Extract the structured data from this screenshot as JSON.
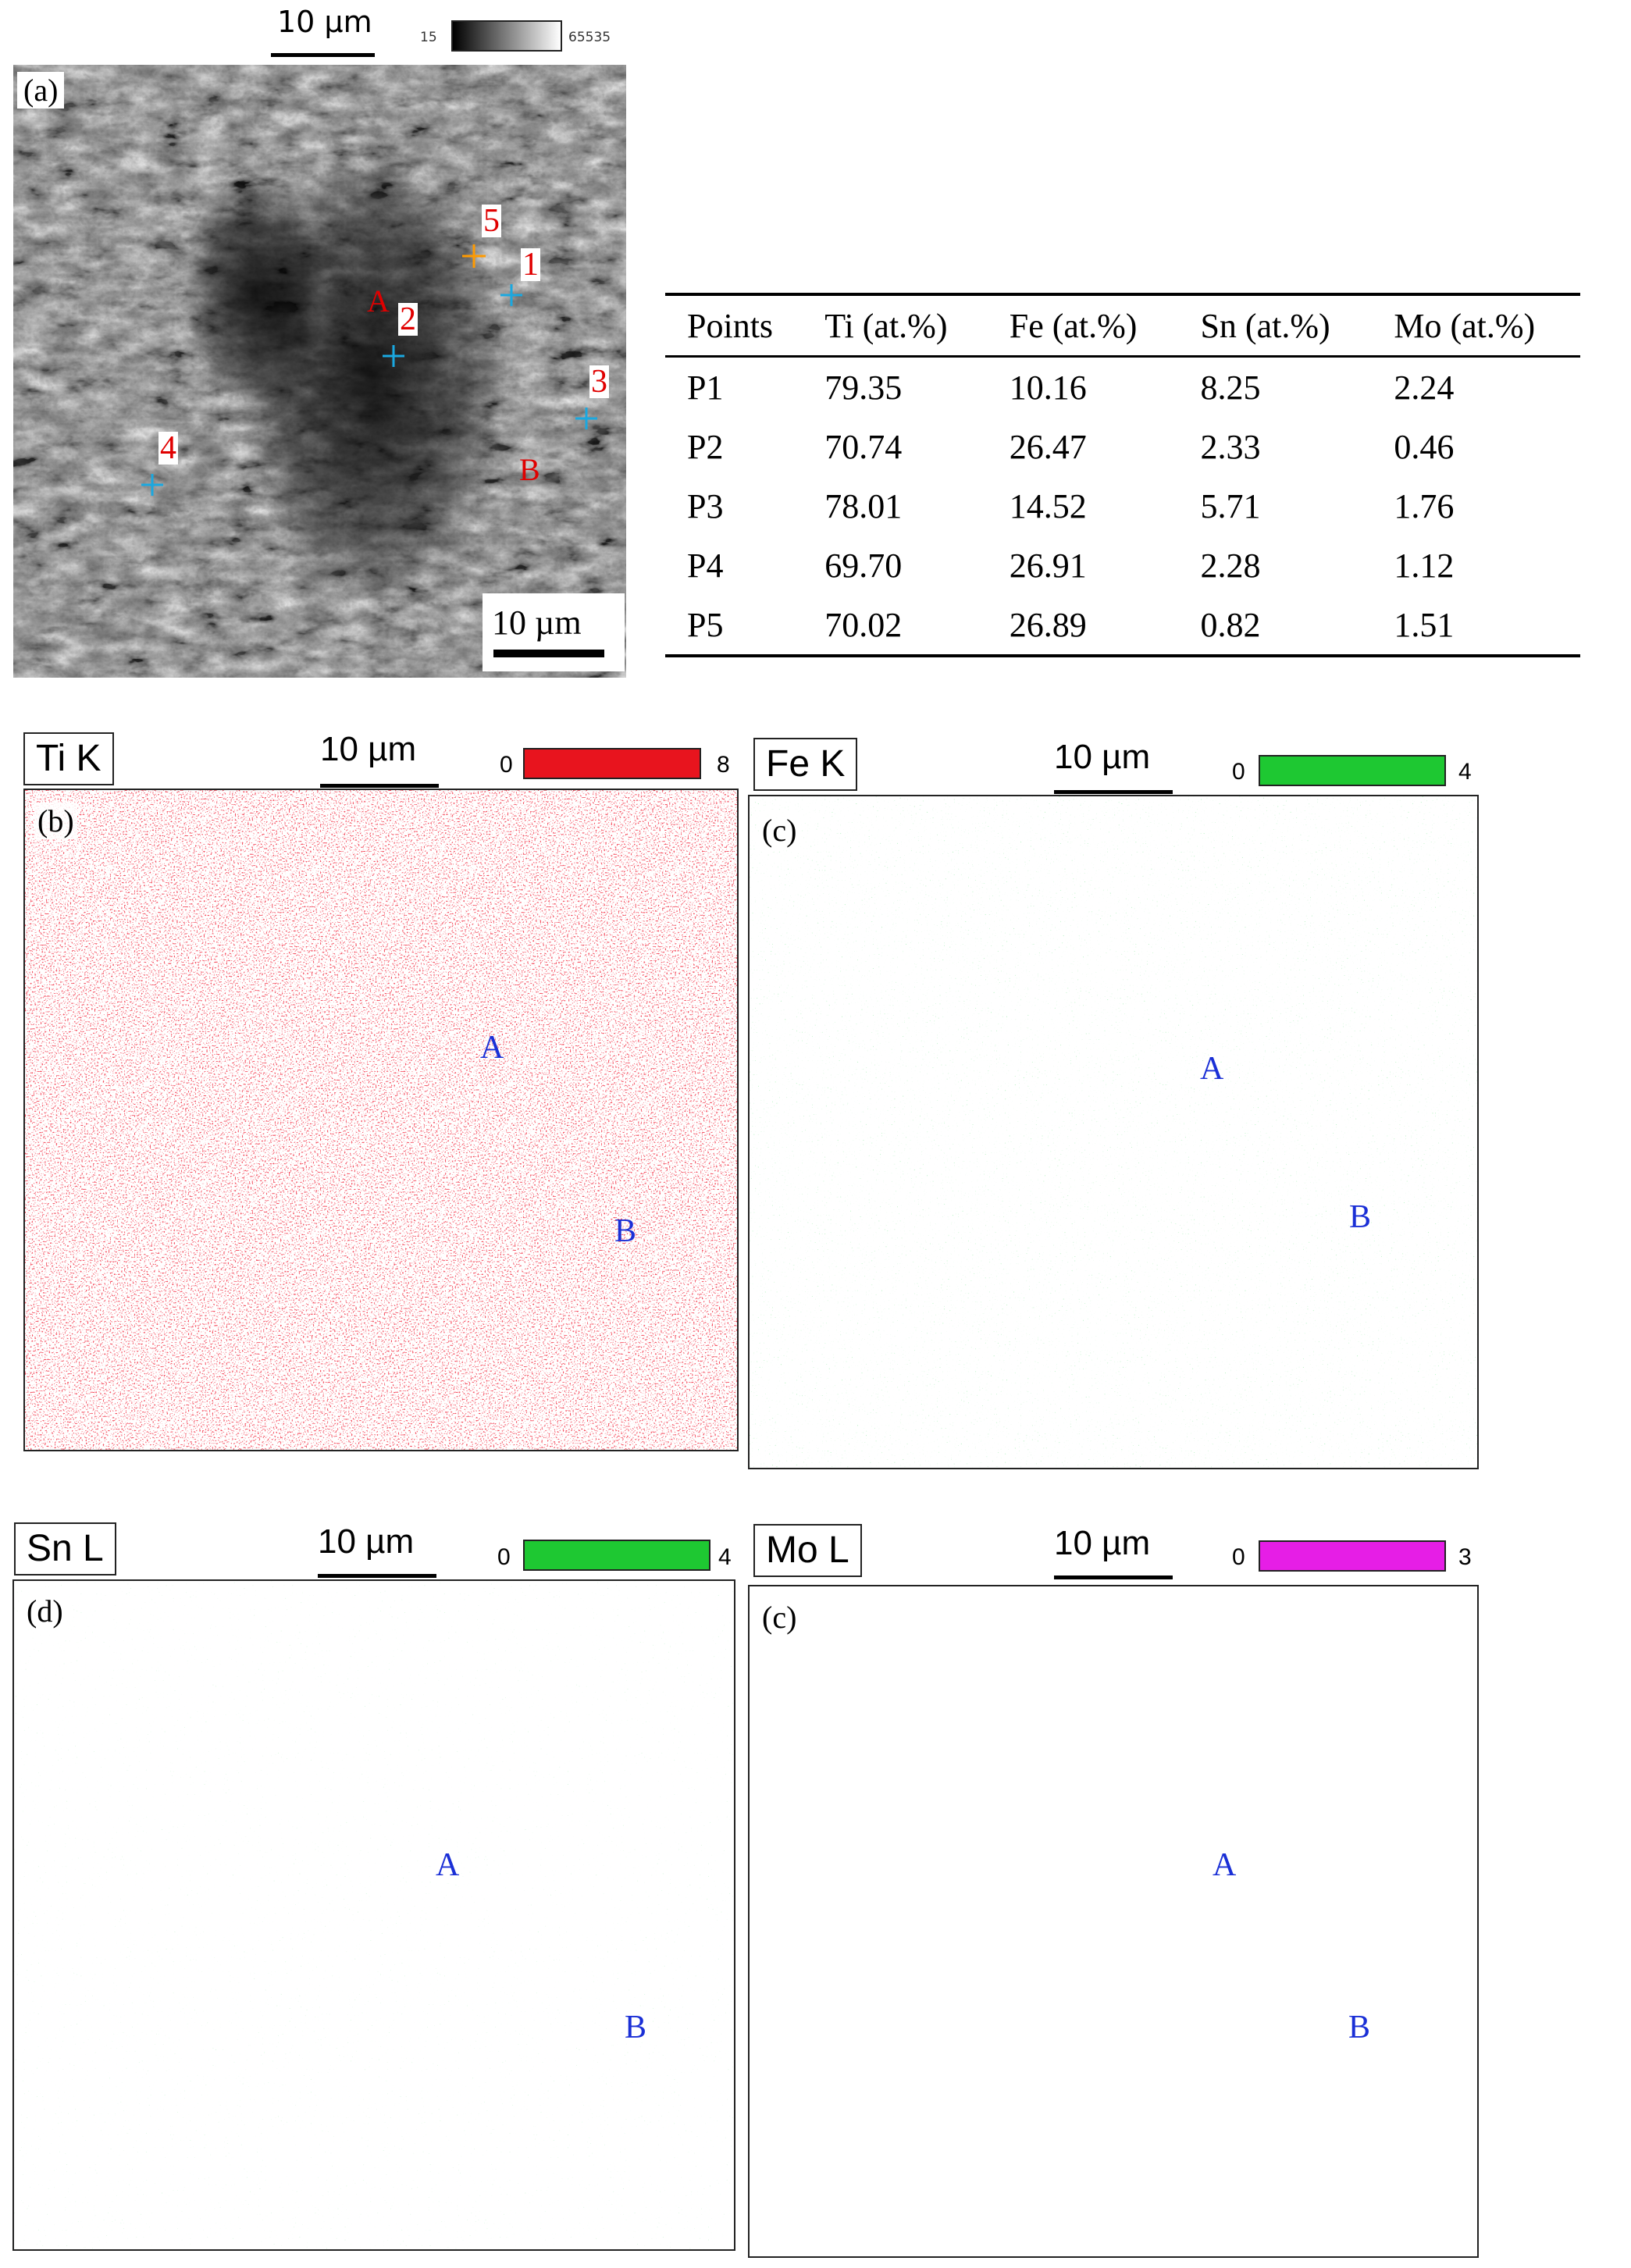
{
  "panel_a": {
    "label": "(a)",
    "top_scale_label": "10 µm",
    "grayscale_min": "15",
    "grayscale_max": "65535",
    "bottom_scale_label": "10 µm",
    "points": [
      "1",
      "2",
      "3",
      "4",
      "5"
    ],
    "regions": [
      "A",
      "B"
    ]
  },
  "table": {
    "headers": [
      "Points",
      "Ti (at.%)",
      "Fe (at.%)",
      "Sn (at.%)",
      "Mo (at.%)"
    ],
    "rows": [
      [
        "P1",
        "79.35",
        "10.16",
        "8.25",
        "2.24"
      ],
      [
        "P2",
        "70.74",
        "26.47",
        "2.33",
        "0.46"
      ],
      [
        "P3",
        "78.01",
        "14.52",
        "5.71",
        "1.76"
      ],
      [
        "P4",
        "69.70",
        "26.91",
        "2.28",
        "1.12"
      ],
      [
        "P5",
        "70.02",
        "26.89",
        "0.82",
        "1.51"
      ]
    ]
  },
  "maps": [
    {
      "element": "Ti K",
      "letter": "(b)",
      "scale": "10 µm",
      "cmin": "0",
      "cmax": "8",
      "color": "#e8141e",
      "regions": [
        "A",
        "B"
      ]
    },
    {
      "element": "Fe K",
      "letter": "(c)",
      "scale": "10 µm",
      "cmin": "0",
      "cmax": "4",
      "color": "#1ec832",
      "regions": [
        "A",
        "B"
      ]
    },
    {
      "element": "Sn L",
      "letter": "(d)",
      "scale": "10 µm",
      "cmin": "0",
      "cmax": "4",
      "color": "#1ec832",
      "regions": [
        "A",
        "B"
      ]
    },
    {
      "element": "Mo L",
      "letter": "(c)",
      "scale": "10 µm",
      "cmin": "0",
      "cmax": "3",
      "color": "#e61ee6",
      "regions": [
        "A",
        "B"
      ]
    }
  ]
}
